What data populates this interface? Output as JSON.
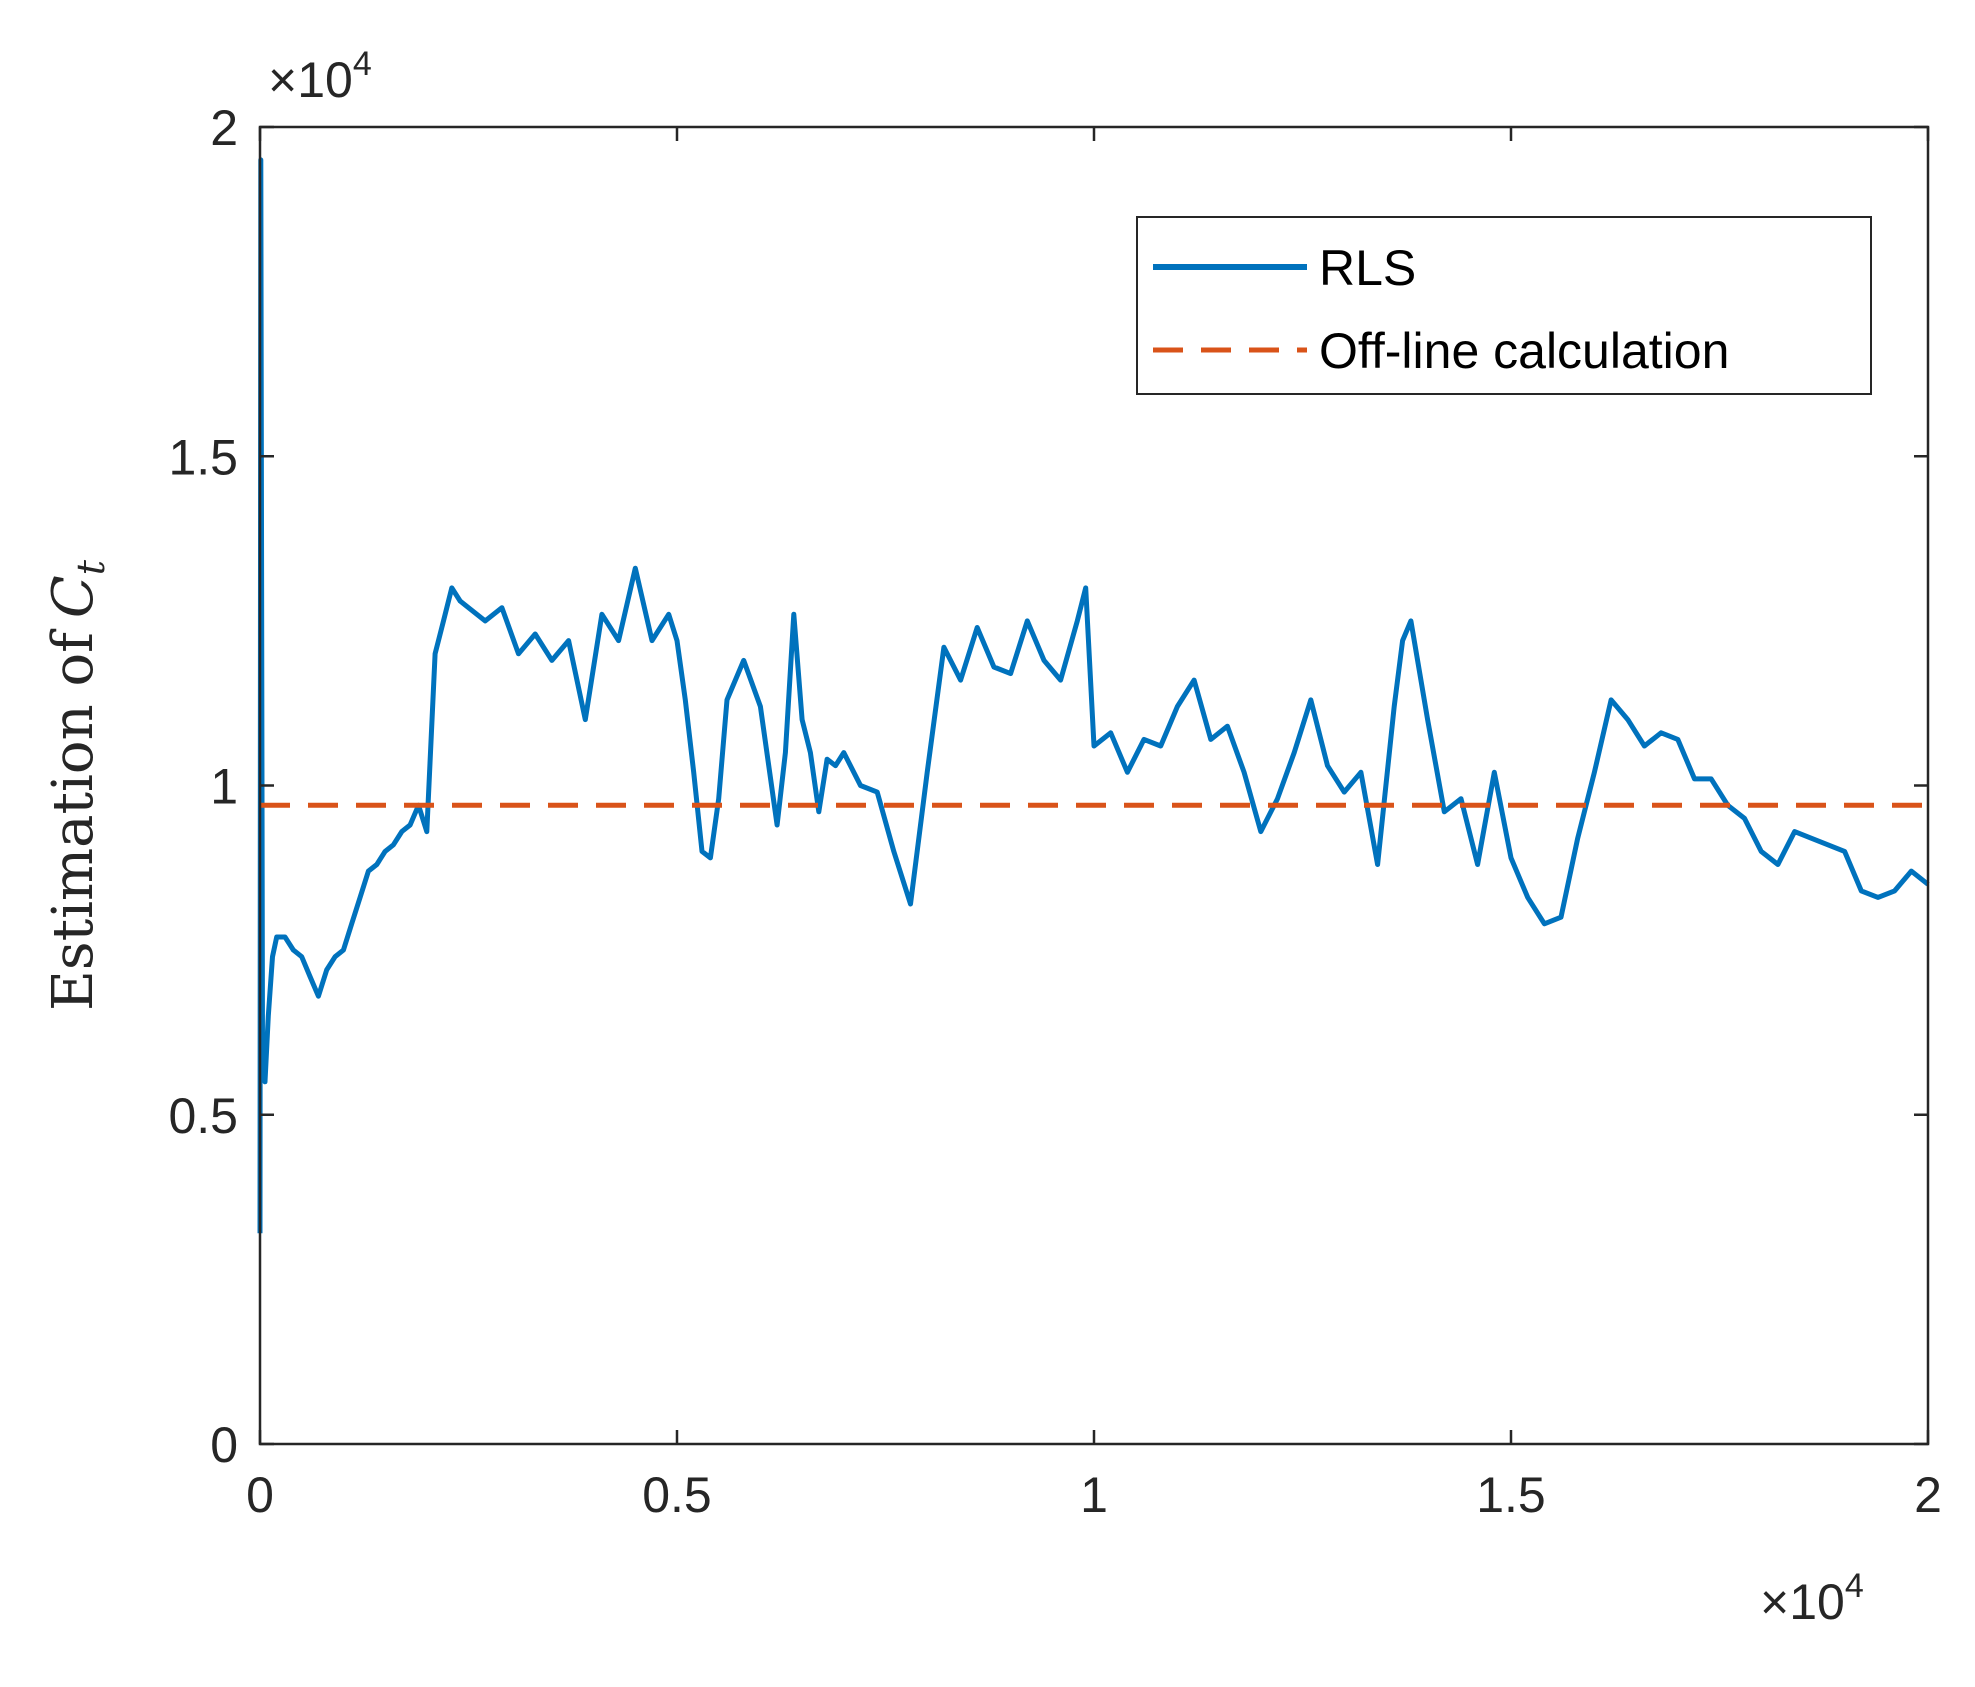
{
  "chart_data": {
    "type": "line",
    "title": "",
    "xlabel": "",
    "ylabel": "Estimation of",
    "ylabel_symbol": "C",
    "ylabel_subscript": "t",
    "x_exponent_label": "×10",
    "x_exponent_power": "4",
    "y_exponent_label": "×10",
    "y_exponent_power": "4",
    "xlim": [
      0,
      20000
    ],
    "ylim": [
      0,
      20000
    ],
    "x_ticks": [
      0,
      5000,
      10000,
      15000,
      20000
    ],
    "x_tick_labels": [
      "0",
      "0.5",
      "1",
      "1.5",
      "2"
    ],
    "y_ticks": [
      0,
      5000,
      10000,
      15000,
      20000
    ],
    "y_tick_labels": [
      "0",
      "0.5",
      "1",
      "1.5",
      "2"
    ],
    "grid": false,
    "legend_position": "top-right",
    "series": [
      {
        "name": "RLS",
        "color": "#0072BD",
        "style": "solid",
        "x": [
          0,
          10,
          30,
          60,
          100,
          150,
          200,
          300,
          400,
          500,
          600,
          700,
          800,
          900,
          1000,
          1100,
          1200,
          1300,
          1400,
          1500,
          1600,
          1700,
          1800,
          1900,
          2000,
          2100,
          2200,
          2300,
          2400,
          2500,
          2700,
          2900,
          3100,
          3300,
          3500,
          3700,
          3900,
          4100,
          4300,
          4500,
          4700,
          4900,
          5000,
          5100,
          5200,
          5300,
          5400,
          5500,
          5600,
          5800,
          6000,
          6200,
          6300,
          6400,
          6500,
          6600,
          6700,
          6800,
          6900,
          7000,
          7200,
          7400,
          7600,
          7800,
          8000,
          8200,
          8400,
          8600,
          8800,
          9000,
          9200,
          9400,
          9600,
          9800,
          9900,
          10000,
          10200,
          10400,
          10600,
          10800,
          11000,
          11200,
          11400,
          11600,
          11800,
          12000,
          12200,
          12400,
          12600,
          12800,
          13000,
          13200,
          13400,
          13600,
          13700,
          13800,
          14000,
          14200,
          14400,
          14600,
          14800,
          15000,
          15200,
          15400,
          15600,
          15800,
          16000,
          16200,
          16400,
          16600,
          16800,
          17000,
          17200,
          17400,
          17600,
          17800,
          18000,
          18200,
          18400,
          18600,
          18800,
          19000,
          19200,
          19400,
          19600,
          19800,
          20000
        ],
        "y": [
          3200,
          19500,
          6000,
          5500,
          6500,
          7400,
          7700,
          7700,
          7500,
          7400,
          7100,
          6800,
          7200,
          7400,
          7500,
          7900,
          8300,
          8700,
          8800,
          9000,
          9100,
          9300,
          9400,
          9700,
          9300,
          12000,
          12500,
          13000,
          12800,
          12700,
          12500,
          12700,
          12000,
          12300,
          11900,
          12200,
          11000,
          12600,
          12200,
          13300,
          12200,
          12600,
          12200,
          11300,
          10200,
          9000,
          8900,
          9800,
          11300,
          11900,
          11200,
          9400,
          10500,
          12600,
          11000,
          10500,
          9600,
          10400,
          10300,
          10500,
          10000,
          9900,
          9000,
          8200,
          10200,
          12100,
          11600,
          12400,
          11800,
          11700,
          12500,
          11900,
          11600,
          12500,
          13000,
          10600,
          10800,
          10200,
          10700,
          10600,
          11200,
          11600,
          10700,
          10900,
          10200,
          9300,
          9800,
          10500,
          11300,
          10300,
          9900,
          10200,
          8800,
          11200,
          12200,
          12500,
          11000,
          9600,
          9800,
          8800,
          10200,
          8900,
          8300,
          7900,
          8000,
          9200,
          10200,
          11300,
          11000,
          10600,
          10800,
          10700,
          10100,
          10100,
          9700,
          9500,
          9000,
          8800,
          9300,
          9200,
          9100,
          9000,
          8400,
          8300,
          8400,
          8700,
          8500
        ],
        "style_note": ""
      },
      {
        "name": "Off-line calculation",
        "color": "#D95319",
        "style": "dashed",
        "x": [
          0,
          20000
        ],
        "y": [
          9700,
          9700
        ]
      }
    ]
  }
}
